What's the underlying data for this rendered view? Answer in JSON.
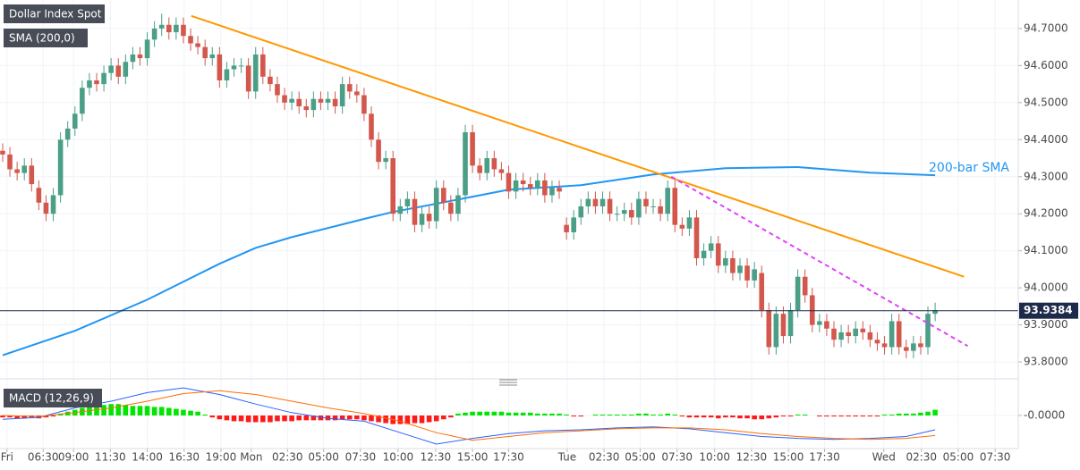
{
  "chart_data": {
    "type": "candlestick",
    "title": "Dollar Index Spot",
    "sma_label": "SMA (200,0)",
    "sma_annotation": "200-bar SMA",
    "up_color": "#4a9f86",
    "down_color": "#d3574c",
    "grid": true,
    "xlim": [
      -0.37,
      140.5
    ],
    "ylim": [
      93.764,
      94.777
    ],
    "xticks": [
      {
        "value": 0.6,
        "label": "Fri"
      },
      {
        "value": 5.6,
        "label": "06:30"
      },
      {
        "value": 9.8,
        "label": "09:00"
      },
      {
        "value": 14.9,
        "label": "11:30"
      },
      {
        "value": 20,
        "label": "14:00"
      },
      {
        "value": 25.1,
        "label": "16:30"
      },
      {
        "value": 30.2,
        "label": "19:00"
      },
      {
        "value": 34.4,
        "label": "Mon"
      },
      {
        "value": 39.4,
        "label": "02:30"
      },
      {
        "value": 44.4,
        "label": "05:00"
      },
      {
        "value": 49.5,
        "label": "07:30"
      },
      {
        "value": 54.7,
        "label": "10:00"
      },
      {
        "value": 59.9,
        "label": "12:30"
      },
      {
        "value": 65,
        "label": "15:00"
      },
      {
        "value": 70,
        "label": "17:30"
      },
      {
        "value": 78.1,
        "label": "Tue"
      },
      {
        "value": 83.2,
        "label": "02:30"
      },
      {
        "value": 88.2,
        "label": "05:00"
      },
      {
        "value": 93.3,
        "label": "07:30"
      },
      {
        "value": 98.5,
        "label": "10:00"
      },
      {
        "value": 103.6,
        "label": "12:30"
      },
      {
        "value": 108.7,
        "label": "15:00"
      },
      {
        "value": 113.7,
        "label": "17:30"
      },
      {
        "value": 121.9,
        "label": "Wed"
      },
      {
        "value": 127.1,
        "label": "02:30"
      },
      {
        "value": 132.2,
        "label": "05:00"
      },
      {
        "value": 137.3,
        "label": "07:30"
      }
    ],
    "yticks": [
      {
        "value": 94.7,
        "label": "94.7000"
      },
      {
        "value": 94.6,
        "label": "94.6000"
      },
      {
        "value": 94.5,
        "label": "94.5000"
      },
      {
        "value": 94.4,
        "label": "94.4000"
      },
      {
        "value": 94.3,
        "label": "94.3000"
      },
      {
        "value": 94.2,
        "label": "94.2000"
      },
      {
        "value": 94.1,
        "label": "94.1000"
      },
      {
        "value": 94.0,
        "label": "94.0000"
      },
      {
        "value": 93.9,
        "label": "93.9000"
      },
      {
        "value": 93.8,
        "label": "93.8000"
      }
    ],
    "last_price": 93.9384,
    "x": [
      0,
      1,
      2,
      3,
      4,
      5,
      6,
      7,
      8,
      9,
      10,
      11,
      12,
      13,
      14,
      15,
      16,
      17,
      18,
      19,
      20,
      21,
      22,
      23,
      24,
      25,
      26,
      27,
      28,
      29,
      30,
      31,
      32,
      33,
      34,
      35,
      36,
      37,
      38,
      39,
      40,
      41,
      42,
      43,
      44,
      45,
      46,
      47,
      48,
      49,
      50,
      51,
      52,
      53,
      54,
      55,
      56,
      57,
      58,
      59,
      60,
      61,
      62,
      63,
      64,
      65,
      66,
      67,
      68,
      69,
      70,
      71,
      72,
      73,
      74,
      75,
      76,
      77,
      78,
      79,
      80,
      81,
      82,
      83,
      84,
      85,
      86,
      87,
      88,
      89,
      90,
      91,
      92,
      93,
      94,
      95,
      96,
      97,
      98,
      99,
      100,
      101,
      102,
      103,
      104,
      105,
      106,
      107,
      108,
      109,
      110,
      111,
      112,
      113,
      114,
      115,
      116,
      117,
      118,
      119,
      120,
      121,
      122,
      123,
      124,
      125,
      126,
      127,
      128,
      129
    ],
    "open": [
      94.37,
      94.36,
      94.32,
      94.31,
      94.33,
      94.27,
      94.23,
      94.2,
      94.25,
      94.4,
      94.43,
      94.47,
      94.54,
      94.56,
      94.55,
      94.58,
      94.6,
      94.57,
      94.61,
      94.63,
      94.62,
      94.67,
      94.7,
      94.71,
      94.69,
      94.71,
      94.68,
      94.66,
      94.65,
      94.62,
      94.63,
      94.56,
      94.59,
      94.6,
      94.6,
      94.53,
      94.63,
      94.57,
      94.55,
      94.52,
      94.5,
      94.51,
      94.49,
      94.48,
      94.51,
      94.5,
      94.51,
      94.49,
      94.55,
      94.53,
      94.52,
      94.47,
      94.4,
      94.34,
      94.35,
      94.2,
      94.22,
      94.24,
      94.17,
      94.2,
      94.18,
      94.27,
      94.23,
      94.2,
      94.25,
      94.42,
      94.33,
      94.31,
      94.35,
      94.32,
      94.31,
      94.26,
      94.29,
      94.28,
      94.27,
      94.29,
      94.25,
      94.27,
      94.17,
      94.15,
      94.19,
      94.22,
      94.24,
      94.22,
      94.24,
      94.2,
      94.2,
      94.21,
      94.19,
      94.24,
      94.22,
      94.22,
      94.2,
      94.27,
      94.17,
      94.16,
      94.19,
      94.08,
      94.1,
      94.12,
      94.06,
      94.08,
      94.04,
      94.06,
      94.02,
      94.04,
      93.94,
      93.84,
      93.93,
      93.87,
      93.94,
      94.03,
      93.98,
      93.9,
      93.91,
      93.89,
      93.86,
      93.88,
      93.87,
      93.89,
      93.88,
      93.86,
      93.85,
      93.84,
      93.91,
      93.84,
      93.83,
      93.85,
      93.84,
      93.93
    ],
    "high": [
      94.39,
      94.38,
      94.34,
      94.35,
      94.35,
      94.29,
      94.25,
      94.27,
      94.42,
      94.45,
      94.49,
      94.56,
      94.58,
      94.58,
      94.6,
      94.62,
      94.62,
      94.63,
      94.65,
      94.65,
      94.69,
      94.72,
      94.74,
      94.73,
      94.73,
      94.73,
      94.7,
      94.68,
      94.67,
      94.65,
      94.65,
      94.61,
      94.62,
      94.62,
      94.62,
      94.65,
      94.65,
      94.59,
      94.57,
      94.54,
      94.53,
      94.53,
      94.51,
      94.53,
      94.53,
      94.53,
      94.53,
      94.57,
      94.57,
      94.55,
      94.54,
      94.49,
      94.42,
      94.37,
      94.37,
      94.24,
      94.26,
      94.26,
      94.22,
      94.22,
      94.29,
      94.29,
      94.25,
      94.27,
      94.44,
      94.44,
      94.35,
      94.37,
      94.37,
      94.34,
      94.33,
      94.31,
      94.31,
      94.3,
      94.31,
      94.31,
      94.29,
      94.29,
      94.19,
      94.21,
      94.24,
      94.26,
      94.26,
      94.26,
      94.26,
      94.22,
      94.23,
      94.23,
      94.26,
      94.26,
      94.24,
      94.24,
      94.29,
      94.29,
      94.19,
      94.21,
      94.21,
      94.12,
      94.14,
      94.14,
      94.1,
      94.1,
      94.08,
      94.08,
      94.07,
      94.06,
      93.96,
      93.95,
      93.95,
      93.96,
      94.05,
      94.05,
      94.0,
      93.93,
      93.93,
      93.91,
      93.9,
      93.9,
      93.91,
      93.91,
      93.9,
      93.88,
      93.87,
      93.93,
      93.93,
      93.86,
      93.87,
      93.87,
      93.95,
      93.96
    ],
    "low": [
      94.34,
      94.3,
      94.29,
      94.29,
      94.26,
      94.21,
      94.18,
      94.18,
      94.23,
      94.38,
      94.41,
      94.45,
      94.52,
      94.53,
      94.53,
      94.56,
      94.55,
      94.55,
      94.59,
      94.6,
      94.6,
      94.65,
      94.68,
      94.67,
      94.67,
      94.66,
      94.64,
      94.63,
      94.6,
      94.6,
      94.54,
      94.54,
      94.57,
      94.58,
      94.51,
      94.51,
      94.55,
      94.53,
      94.5,
      94.48,
      94.48,
      94.47,
      94.46,
      94.46,
      94.48,
      94.48,
      94.47,
      94.47,
      94.51,
      94.5,
      94.45,
      94.38,
      94.32,
      94.32,
      94.18,
      94.18,
      94.2,
      94.15,
      94.15,
      94.16,
      94.16,
      94.21,
      94.18,
      94.18,
      94.23,
      94.31,
      94.29,
      94.29,
      94.3,
      94.29,
      94.24,
      94.24,
      94.26,
      94.25,
      94.25,
      94.23,
      94.23,
      94.24,
      94.13,
      94.13,
      94.17,
      94.2,
      94.2,
      94.2,
      94.18,
      94.18,
      94.18,
      94.17,
      94.17,
      94.2,
      94.2,
      94.18,
      94.18,
      94.15,
      94.14,
      94.14,
      94.06,
      94.06,
      94.08,
      94.04,
      94.04,
      94.02,
      94.02,
      94.0,
      94.0,
      93.92,
      93.82,
      93.82,
      93.85,
      93.85,
      93.92,
      93.96,
      93.88,
      93.88,
      93.87,
      93.84,
      93.84,
      93.85,
      93.85,
      93.86,
      93.84,
      93.83,
      93.82,
      93.82,
      93.82,
      93.81,
      93.81,
      93.82,
      93.82,
      93.91
    ],
    "close": [
      94.36,
      94.32,
      94.31,
      94.33,
      94.28,
      94.23,
      94.2,
      94.25,
      94.4,
      94.43,
      94.47,
      94.54,
      94.56,
      94.55,
      94.58,
      94.6,
      94.57,
      94.61,
      94.63,
      94.62,
      94.67,
      94.7,
      94.71,
      94.69,
      94.71,
      94.68,
      94.66,
      94.65,
      94.62,
      94.63,
      94.56,
      94.59,
      94.6,
      94.6,
      94.53,
      94.63,
      94.57,
      94.55,
      94.52,
      94.5,
      94.51,
      94.49,
      94.48,
      94.51,
      94.5,
      94.51,
      94.49,
      94.55,
      94.53,
      94.52,
      94.47,
      94.4,
      94.34,
      94.35,
      94.2,
      94.22,
      94.24,
      94.17,
      94.2,
      94.18,
      94.27,
      94.23,
      94.2,
      94.25,
      94.42,
      94.33,
      94.31,
      94.35,
      94.32,
      94.31,
      94.26,
      94.29,
      94.28,
      94.27,
      94.29,
      94.25,
      94.27,
      94.26,
      94.15,
      94.19,
      94.22,
      94.24,
      94.22,
      94.24,
      94.2,
      94.2,
      94.21,
      94.19,
      94.24,
      94.22,
      94.22,
      94.2,
      94.27,
      94.17,
      94.16,
      94.19,
      94.08,
      94.1,
      94.12,
      94.06,
      94.08,
      94.04,
      94.06,
      94.02,
      94.05,
      93.94,
      93.84,
      93.93,
      93.87,
      93.94,
      94.03,
      93.98,
      93.9,
      93.91,
      93.89,
      93.86,
      93.88,
      93.87,
      93.89,
      93.88,
      93.86,
      93.85,
      93.84,
      93.91,
      93.84,
      93.83,
      93.85,
      93.84,
      93.93,
      93.94
    ],
    "sma": {
      "color": "#2196f3",
      "x": [
        0,
        10,
        20,
        30,
        35,
        40,
        50,
        54,
        60,
        70,
        80,
        90,
        100,
        110,
        120,
        129
      ],
      "values": [
        93.818,
        93.884,
        93.968,
        94.065,
        94.108,
        94.137,
        94.186,
        94.205,
        94.227,
        94.265,
        94.277,
        94.306,
        94.323,
        94.326,
        94.311,
        94.304
      ]
    },
    "trendlines": [
      {
        "color": "#ff9800",
        "dashed": false,
        "x": [
          26.1,
          133
        ],
        "values": [
          94.734,
          94.03
        ]
      },
      {
        "color": "#e040fb",
        "dashed": true,
        "x": [
          92.5,
          133.5
        ],
        "values": [
          94.3,
          93.843
        ]
      }
    ],
    "macd": {
      "title": "MACD (12,26,9)",
      "ylim": [
        -0.03,
        0.03
      ],
      "yticks": [
        {
          "value": 0,
          "label": "-0.0000"
        }
      ],
      "up_color": "#00e600",
      "down_color": "#ff1a1a",
      "histogram": [
        -0.002,
        -0.002,
        -0.003,
        -0.003,
        -0.002,
        -0.003,
        -0.002,
        -0.001,
        0.002,
        0.004,
        0.006,
        0.008,
        0.009,
        0.01,
        0.011,
        0.012,
        0.012,
        0.011,
        0.01,
        0.01,
        0.01,
        0.009,
        0.009,
        0.008,
        0.007,
        0.006,
        0.005,
        0.004,
        0.001,
        -0.002,
        -0.004,
        -0.005,
        -0.006,
        -0.006,
        -0.007,
        -0.007,
        -0.007,
        -0.007,
        -0.006,
        -0.006,
        -0.006,
        -0.005,
        -0.005,
        -0.005,
        -0.005,
        -0.005,
        -0.005,
        -0.004,
        -0.004,
        -0.004,
        -0.005,
        -0.006,
        -0.007,
        -0.008,
        -0.009,
        -0.009,
        -0.009,
        -0.008,
        -0.008,
        -0.007,
        -0.006,
        -0.004,
        -0.002,
        0.002,
        0.003,
        0.004,
        0.004,
        0.004,
        0.004,
        0.004,
        0.003,
        0.003,
        0.003,
        0.003,
        0.002,
        0.002,
        0.002,
        0.002,
        0.001,
        -0.001,
        -0.001,
        0,
        0.001,
        0.001,
        0.001,
        0.001,
        0.001,
        0.001,
        0.002,
        0.002,
        0.001,
        0.001,
        0.002,
        0.001,
        -0.001,
        -0.002,
        -0.002,
        -0.002,
        -0.002,
        -0.003,
        -0.002,
        -0.002,
        -0.003,
        -0.003,
        -0.004,
        -0.004,
        -0.003,
        -0.002,
        -0.001,
        -0.001,
        0.001,
        0.001,
        0,
        -0.001,
        -0.001,
        -0.001,
        -0.001,
        -0.001,
        -0.001,
        -0.001,
        -0.001,
        -0.001,
        0.001,
        0.001,
        0.002,
        0.002,
        0.002,
        0.003,
        0.004,
        0.006
      ],
      "line_x": [
        0,
        5,
        10,
        15,
        20,
        25,
        30,
        35,
        40,
        45,
        50,
        55,
        60,
        65,
        70,
        75,
        80,
        85,
        90,
        95,
        100,
        105,
        110,
        115,
        120,
        125,
        129
      ],
      "macd_line": {
        "color": "#2962ff",
        "values": [
          -0.004,
          -0.002,
          0.008,
          0.015,
          0.024,
          0.029,
          0.022,
          0.012,
          0.003,
          -0.003,
          -0.006,
          -0.018,
          -0.03,
          -0.024,
          -0.019,
          -0.016,
          -0.015,
          -0.013,
          -0.012,
          -0.014,
          -0.018,
          -0.022,
          -0.024,
          -0.025,
          -0.024,
          -0.022,
          -0.015
        ]
      },
      "signal_line": {
        "color": "#ff6d00",
        "values": [
          0,
          -0.001,
          0.003,
          0.008,
          0.015,
          0.023,
          0.026,
          0.022,
          0.015,
          0.008,
          0.002,
          -0.006,
          -0.018,
          -0.026,
          -0.022,
          -0.018,
          -0.016,
          -0.014,
          -0.013,
          -0.013,
          -0.015,
          -0.019,
          -0.022,
          -0.024,
          -0.025,
          -0.024,
          -0.021
        ]
      }
    }
  }
}
